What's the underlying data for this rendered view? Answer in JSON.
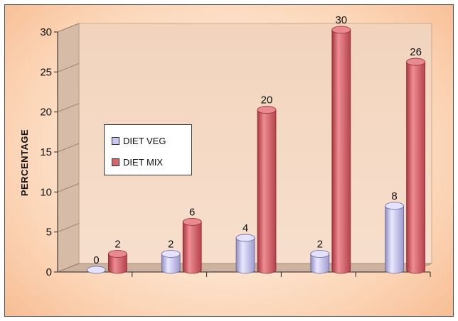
{
  "chart_data": {
    "type": "bar",
    "ylabel": "PERCENTAGE",
    "xlabel": "",
    "ylim": [
      0,
      30
    ],
    "yticks": [
      0,
      5,
      10,
      15,
      20,
      25,
      30
    ],
    "categories": [
      "",
      "",
      "",
      "",
      ""
    ],
    "series": [
      {
        "name": "DIET VEG",
        "values": [
          0,
          2,
          4,
          2,
          8
        ],
        "color": "#c8c6f0"
      },
      {
        "name": "DIET MIX",
        "values": [
          2,
          6,
          20,
          30,
          26
        ],
        "color": "#d9636c"
      }
    ],
    "legend_position": "left-middle",
    "grid": false
  }
}
